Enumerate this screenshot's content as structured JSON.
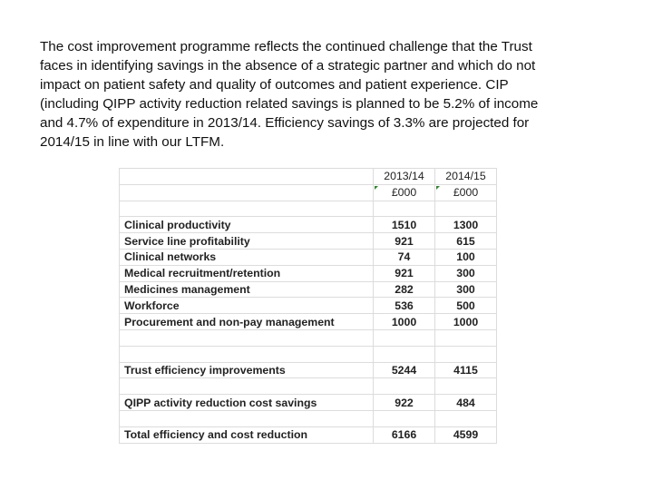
{
  "paragraph": {
    "lines": [
      "The cost improvement programme reflects the continued challenge that the Trust",
      "faces in identifying savings in the absence of a strategic partner and which do not",
      "impact on patient safety and quality of outcomes and patient experience. CIP",
      "(including QIPP activity reduction related savings is planned to be 5.2% of income",
      "and 4.7% of expenditure in 2013/14. Efficiency savings of 3.3% are projected for",
      "2014/15 in line with our LTFM."
    ]
  },
  "table": {
    "columns": [
      "2013/14",
      "2014/15"
    ],
    "units": [
      "£000",
      "£000"
    ],
    "sections": [
      [
        [
          "Clinical productivity",
          1510,
          1300
        ],
        [
          "Service line profitability",
          921,
          615
        ],
        [
          "Clinical networks",
          74,
          100
        ],
        [
          "Medical recruitment/retention",
          921,
          300
        ],
        [
          "Medicines management",
          282,
          300
        ],
        [
          "Workforce",
          536,
          500
        ],
        [
          "Procurement and non-pay management",
          1000,
          1000
        ]
      ],
      [
        [
          "Trust efficiency improvements",
          5244,
          4115
        ]
      ],
      [
        [
          "QIPP activity reduction cost savings",
          922,
          484
        ]
      ],
      [
        [
          "Total efficiency and cost reduction",
          6166,
          4599
        ]
      ]
    ]
  }
}
